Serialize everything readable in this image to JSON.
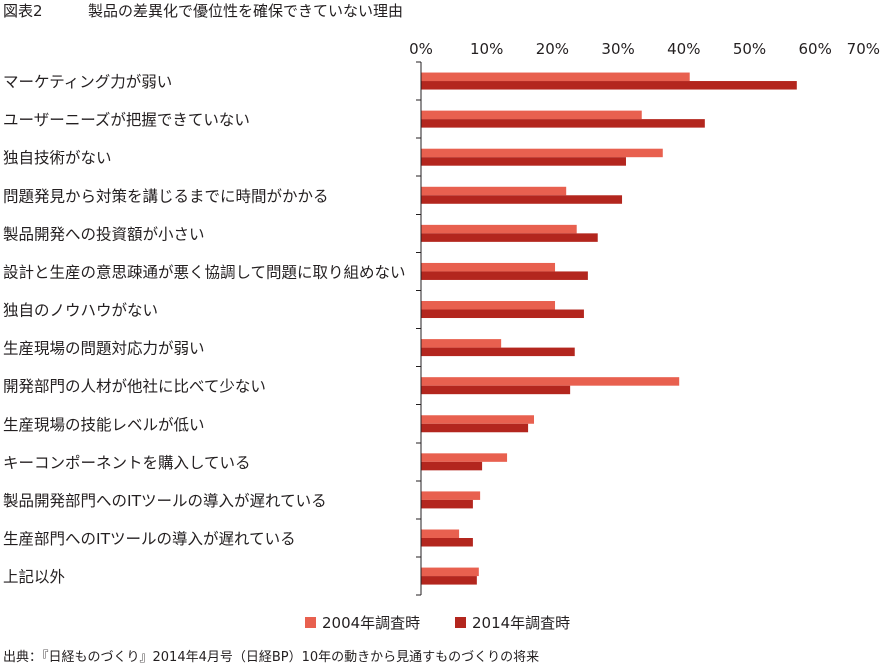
{
  "figure_label": "図表2",
  "chart_data": {
    "type": "bar",
    "orientation": "horizontal",
    "title": "製品の差異化で優位性を確保できていない理由",
    "categories": [
      "マーケティング力が弱い",
      "ユーザーニーズが把握できていない",
      "独自技術がない",
      "問題発見から対策を講じるまでに時間がかかる",
      "製品開発への投資額が小さい",
      "設計と生産の意思疎通が悪く協調して問題に取り組めない",
      "独自のノウハウがない",
      "生産現場の問題対応力が弱い",
      "開発部門の人材が他社に比べて少ない",
      "生産現場の技能レベルが低い",
      "キーコンポーネントを購入している",
      "製品開発部門へのITツールの導入が遅れている",
      "生産部門へのITツールの導入が遅れている",
      "上記以外"
    ],
    "series": [
      {
        "name": "2004年調査時",
        "color": "#e8604f",
        "values": [
          40.9,
          33.6,
          36.8,
          22.1,
          23.7,
          20.4,
          20.4,
          12.2,
          39.3,
          17.2,
          13.1,
          9.0,
          5.8,
          8.8
        ]
      },
      {
        "name": "2014年調査時",
        "color": "#b3261e",
        "values": [
          57.2,
          43.2,
          31.2,
          30.6,
          26.9,
          25.4,
          24.8,
          23.4,
          22.7,
          16.3,
          9.3,
          7.9,
          7.9,
          8.5
        ]
      }
    ],
    "x_ticks": [
      0,
      10,
      20,
      30,
      40,
      50,
      60,
      70
    ],
    "x_tick_labels": [
      "0%",
      "10%",
      "20%",
      "30%",
      "40%",
      "50%",
      "60%",
      "70%"
    ],
    "xlim": [
      0,
      70
    ],
    "x_axis_position": "top",
    "grid": false,
    "legend_position": "bottom-center"
  },
  "source": "出典：『日経ものづくり』2014年4月号（日経BP）10年の動きから見通すものづくりの将来"
}
